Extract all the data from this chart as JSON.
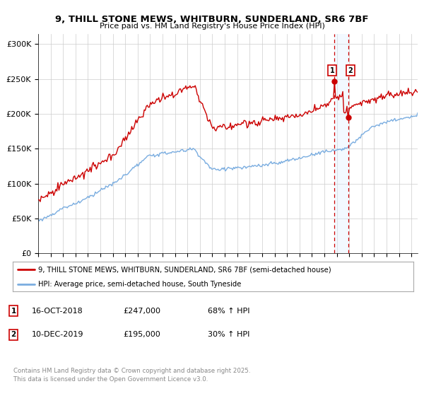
{
  "title": "9, THILL STONE MEWS, WHITBURN, SUNDERLAND, SR6 7BF",
  "subtitle": "Price paid vs. HM Land Registry's House Price Index (HPI)",
  "ylabel_ticks": [
    "£0",
    "£50K",
    "£100K",
    "£150K",
    "£200K",
    "£250K",
    "£300K"
  ],
  "ytick_values": [
    0,
    50000,
    100000,
    150000,
    200000,
    250000,
    300000
  ],
  "ylim": [
    0,
    315000
  ],
  "xlim_start": 1995.0,
  "xlim_end": 2025.5,
  "line1_color": "#cc0000",
  "line2_color": "#7aade0",
  "marker1_date": 2018.79,
  "marker1_price": 247000,
  "marker2_date": 2019.94,
  "marker2_price": 195000,
  "legend_line1": "9, THILL STONE MEWS, WHITBURN, SUNDERLAND, SR6 7BF (semi-detached house)",
  "legend_line2": "HPI: Average price, semi-detached house, South Tyneside",
  "annotation1_date": "16-OCT-2018",
  "annotation1_price": "£247,000",
  "annotation1_hpi": "68% ↑ HPI",
  "annotation2_date": "10-DEC-2019",
  "annotation2_price": "£195,000",
  "annotation2_hpi": "30% ↑ HPI",
  "footer": "Contains HM Land Registry data © Crown copyright and database right 2025.\nThis data is licensed under the Open Government Licence v3.0.",
  "bg_color": "#ffffff",
  "plot_bg_color": "#ffffff",
  "grid_color": "#cccccc",
  "vline_color": "#cc0000",
  "vshade_color": "#ddeeff"
}
